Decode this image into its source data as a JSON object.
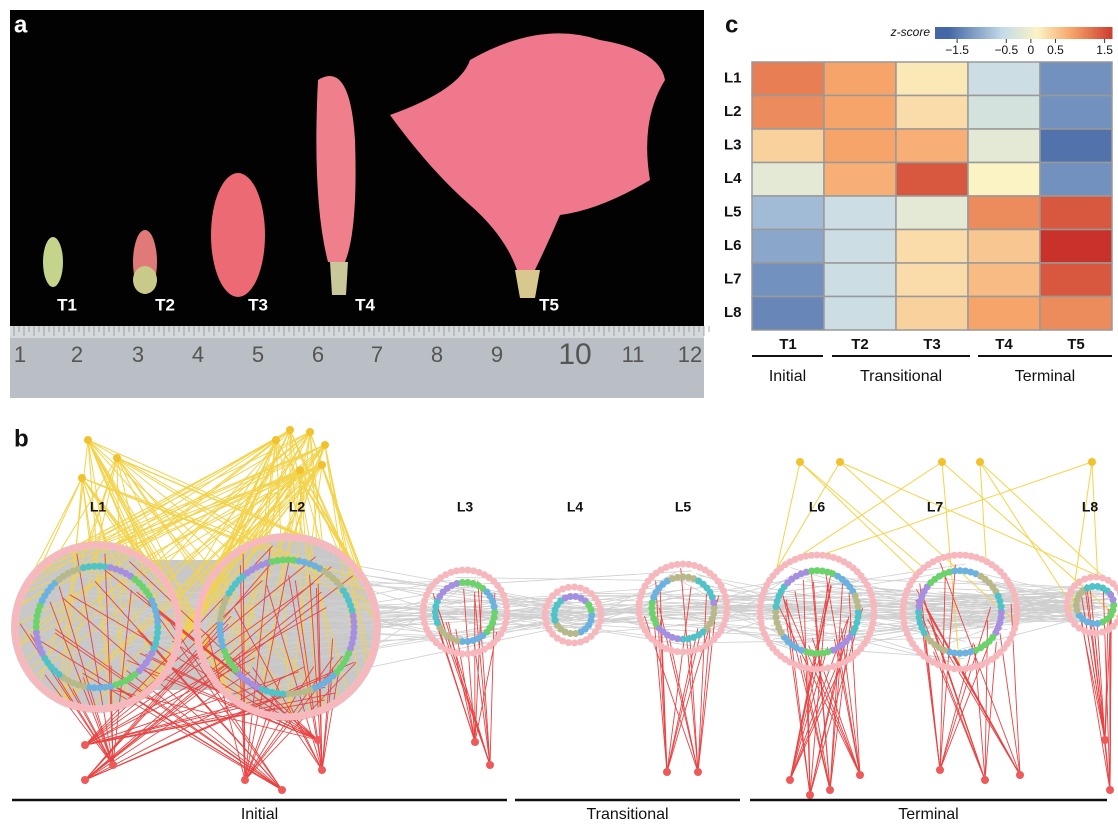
{
  "panel_a": {
    "label": "a",
    "stages": [
      "T1",
      "T2",
      "T3",
      "T4",
      "T5"
    ],
    "ruler": [
      "1",
      "2",
      "3",
      "4",
      "5",
      "6",
      "7",
      "8",
      "9",
      "10",
      "11",
      "12"
    ]
  },
  "panel_b": {
    "label": "b",
    "modules": [
      "L1",
      "L2",
      "L3",
      "L4",
      "L5",
      "L6",
      "L7",
      "L8"
    ],
    "phases": [
      "Initial",
      "Transitional",
      "Terminal"
    ]
  },
  "panel_c": {
    "label": "c"
  },
  "chart_data": {
    "type": "heatmap",
    "legend_title": "z-score",
    "rows": [
      "L1",
      "L2",
      "L3",
      "L4",
      "L5",
      "L6",
      "L7",
      "L8"
    ],
    "columns": [
      "T1",
      "T2",
      "T3",
      "T4",
      "T5"
    ],
    "phases": [
      "Initial",
      "Transitional",
      "Terminal"
    ],
    "values": [
      [
        1.1,
        0.8,
        0.2,
        -0.5,
        -1.3
      ],
      [
        1.0,
        0.8,
        0.3,
        -0.4,
        -1.3
      ],
      [
        0.4,
        0.8,
        0.7,
        -0.2,
        -1.6
      ],
      [
        -0.2,
        0.7,
        1.4,
        0.1,
        -1.3
      ],
      [
        -0.9,
        -0.5,
        -0.2,
        1.0,
        1.4
      ],
      [
        -1.1,
        -0.5,
        0.3,
        0.5,
        1.7
      ],
      [
        -1.3,
        -0.5,
        0.3,
        0.6,
        1.4
      ],
      [
        -1.4,
        -0.5,
        0.4,
        0.8,
        1.0
      ]
    ],
    "colorbar_lim": [
      -1.95,
      1.65
    ],
    "colorbar_ticks": [
      {
        "value": -1.5,
        "label": "−1.5"
      },
      {
        "value": -0.5,
        "label": "−0.5"
      },
      0,
      0.5,
      1.5
    ]
  }
}
